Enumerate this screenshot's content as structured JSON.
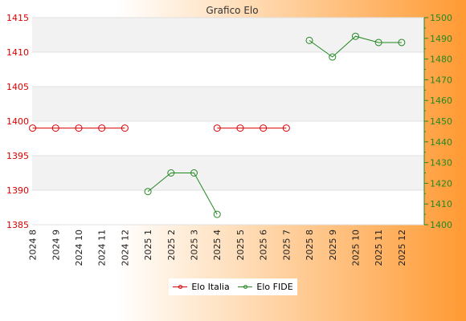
{
  "chart_data": {
    "type": "line",
    "title": "Grafico Elo",
    "categories": [
      "2024 8",
      "2024 9",
      "2024 10",
      "2024 11",
      "2024 12",
      "2025 1",
      "2025 2",
      "2025 3",
      "2025 4",
      "2025 5",
      "2025 6",
      "2025 7",
      "2025 8",
      "2025 9",
      "2025 10",
      "2025 11",
      "2025 12"
    ],
    "left_axis": {
      "ylim": [
        1385,
        1415
      ],
      "ticks": [
        1385,
        1390,
        1395,
        1400,
        1405,
        1410,
        1415
      ],
      "color": "#dd0000"
    },
    "right_axis": {
      "ylim": [
        1400,
        1500
      ],
      "ticks": [
        1400,
        1410,
        1420,
        1430,
        1440,
        1450,
        1460,
        1470,
        1480,
        1490,
        1500
      ],
      "color": "#228822"
    },
    "series": [
      {
        "name": "Elo Italia",
        "axis": "left",
        "color": "#dd0000",
        "values": [
          1399,
          1399,
          1399,
          1399,
          1399,
          null,
          null,
          null,
          1399,
          1399,
          1399,
          1399,
          null,
          null,
          null,
          null,
          null
        ]
      },
      {
        "name": "Elo FIDE",
        "axis": "right",
        "color": "#228822",
        "values": [
          null,
          null,
          null,
          null,
          null,
          1416,
          1425,
          1425,
          1405,
          null,
          null,
          null,
          1489,
          1481,
          1491,
          1488,
          1488
        ]
      }
    ],
    "grid": true,
    "legend": "bottom-center"
  }
}
